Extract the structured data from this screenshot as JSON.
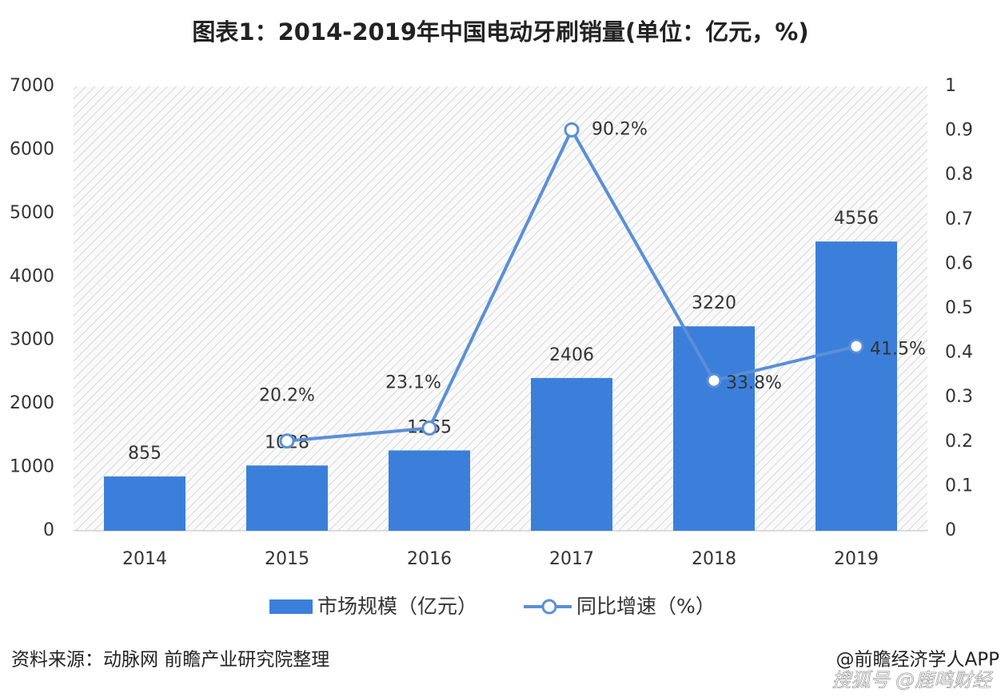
{
  "chart_data": {
    "type": "combo",
    "title": "图表1：2014-2019年中国电动牙刷销量(单位：亿元，%)",
    "categories": [
      "2014",
      "2015",
      "2016",
      "2017",
      "2018",
      "2019"
    ],
    "series": [
      {
        "name": "市场规模（亿元）",
        "type": "bar",
        "color": "#3b7fdb",
        "values": [
          855,
          1028,
          1265,
          2406,
          3220,
          4556
        ]
      },
      {
        "name": "同比增速（%）",
        "type": "line",
        "axis": "y2",
        "color": "#5a8fd8",
        "values": [
          null,
          0.202,
          0.231,
          0.902,
          0.338,
          0.415
        ],
        "value_labels": [
          null,
          "20.2%",
          "23.1%",
          "90.2%",
          "33.8%",
          "41.5%"
        ]
      }
    ],
    "ylim": [
      0,
      7000
    ],
    "yticks": [
      0,
      1000,
      2000,
      3000,
      4000,
      5000,
      6000,
      7000
    ],
    "y2lim": [
      0,
      1
    ],
    "y2ticks": [
      0,
      0.1,
      0.2,
      0.3,
      0.4,
      0.5,
      0.6,
      0.7,
      0.8,
      0.9,
      1
    ],
    "legend": "bottom"
  },
  "source": "资料来源：动脉网 前瞻产业研究院整理",
  "credit": "@前瞻经济学人APP",
  "watermark": "搜狐号 @鹿鸣财经"
}
